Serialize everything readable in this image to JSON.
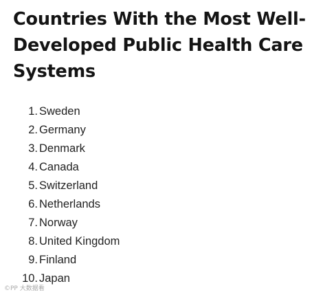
{
  "article": {
    "title": "Countries With the Most Well-Developed Public Health Care Systems",
    "items": [
      {
        "num": "1.",
        "label": "Sweden"
      },
      {
        "num": "2.",
        "label": "Germany"
      },
      {
        "num": "3.",
        "label": "Denmark"
      },
      {
        "num": "4.",
        "label": "Canada"
      },
      {
        "num": "5.",
        "label": "Switzerland"
      },
      {
        "num": "6.",
        "label": "Netherlands"
      },
      {
        "num": "7.",
        "label": "Norway"
      },
      {
        "num": "8.",
        "label": "United Kingdom"
      },
      {
        "num": "9.",
        "label": "Finland"
      },
      {
        "num": "10.",
        "label": "Japan"
      }
    ]
  },
  "watermark": {
    "text": "©PP 大数据看"
  }
}
